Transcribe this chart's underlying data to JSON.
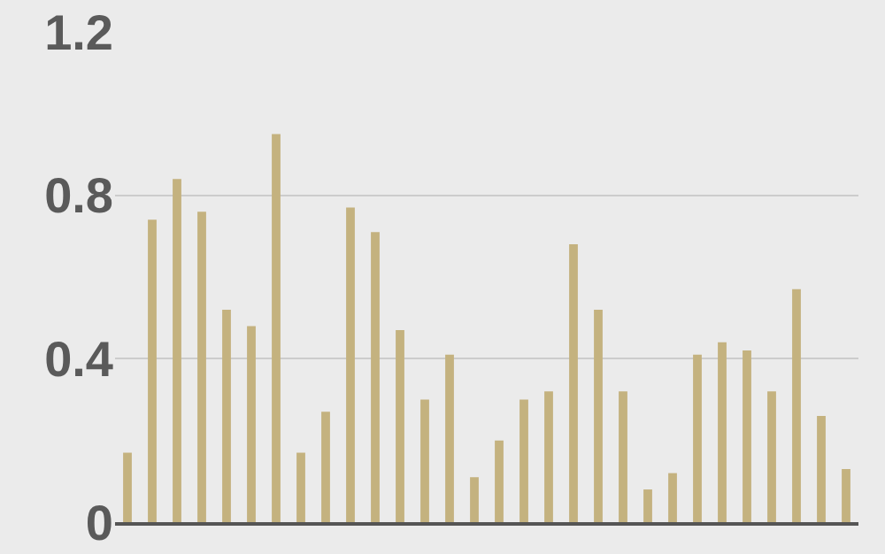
{
  "chart_data": {
    "type": "bar",
    "categories": [
      null,
      null,
      null,
      null,
      null,
      null,
      null,
      null,
      null,
      null,
      null,
      null,
      null,
      null,
      null,
      null,
      null,
      null,
      null,
      null,
      null,
      null,
      null,
      null,
      null,
      null,
      null,
      null,
      null,
      null
    ],
    "values": [
      0.17,
      0.74,
      0.84,
      0.76,
      0.52,
      0.48,
      0.95,
      0.17,
      0.27,
      0.77,
      0.71,
      0.47,
      0.3,
      0.41,
      0.11,
      0.2,
      0.3,
      0.32,
      0.68,
      0.52,
      0.32,
      0.08,
      0.12,
      0.41,
      0.44,
      0.42,
      0.32,
      0.57,
      0.26,
      0.13
    ],
    "color": "#c4b27f",
    "ylim": [
      0,
      1.2
    ],
    "yticks": [
      0,
      0.4,
      0.8,
      1.2
    ],
    "grid": "y",
    "tick_labels": "y"
  }
}
